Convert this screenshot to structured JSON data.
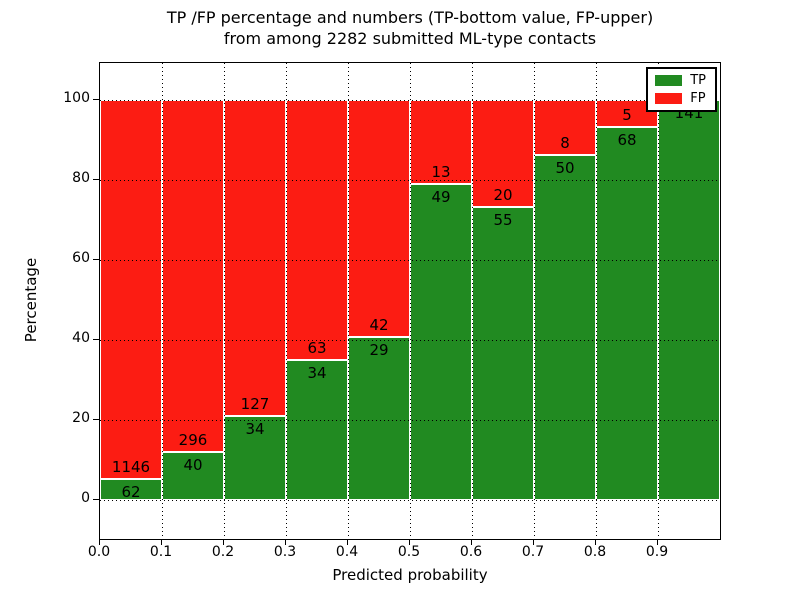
{
  "chart_data": {
    "type": "bar",
    "subtype": "stacked-percentage-histogram",
    "title_line1": "TP /FP percentage and numbers (TP-bottom value, FP-upper)",
    "title_line2": "from among 2282 submitted ML-type contacts",
    "xlabel": "Predicted probability",
    "ylabel": "Percentage",
    "total_contacts": 2282,
    "xlim": [
      0.0,
      1.0
    ],
    "ylim": [
      -10,
      110
    ],
    "xticks": [
      "0.0",
      "0.1",
      "0.2",
      "0.3",
      "0.4",
      "0.5",
      "0.6",
      "0.7",
      "0.8",
      "0.9"
    ],
    "yticks": [
      0,
      20,
      40,
      60,
      80,
      100
    ],
    "grid": true,
    "legend": {
      "position": "upper-right",
      "items": [
        {
          "label": "TP",
          "color": "#218a21"
        },
        {
          "label": "FP",
          "color": "#fc1c13"
        }
      ]
    },
    "colors": {
      "tp": "#218a21",
      "fp": "#fc1c13"
    },
    "bins": [
      {
        "range": [
          0.0,
          0.1
        ],
        "tp": 62,
        "fp": 1146,
        "tp_percent": 5.13
      },
      {
        "range": [
          0.1,
          0.2
        ],
        "tp": 40,
        "fp": 296,
        "tp_percent": 11.9
      },
      {
        "range": [
          0.2,
          0.3
        ],
        "tp": 34,
        "fp": 127,
        "tp_percent": 21.12
      },
      {
        "range": [
          0.3,
          0.4
        ],
        "tp": 34,
        "fp": 63,
        "tp_percent": 35.05
      },
      {
        "range": [
          0.4,
          0.5
        ],
        "tp": 29,
        "fp": 42,
        "tp_percent": 40.85
      },
      {
        "range": [
          0.5,
          0.6
        ],
        "tp": 49,
        "fp": 13,
        "tp_percent": 79.03
      },
      {
        "range": [
          0.6,
          0.7
        ],
        "tp": 55,
        "fp": 20,
        "tp_percent": 73.33
      },
      {
        "range": [
          0.7,
          0.8
        ],
        "tp": 50,
        "fp": 8,
        "tp_percent": 86.21
      },
      {
        "range": [
          0.8,
          0.9
        ],
        "tp": 68,
        "fp": 5,
        "tp_percent": 93.15
      },
      {
        "range": [
          0.9,
          1.0
        ],
        "tp": 141,
        "fp": 0,
        "tp_percent": 100.0
      }
    ]
  }
}
